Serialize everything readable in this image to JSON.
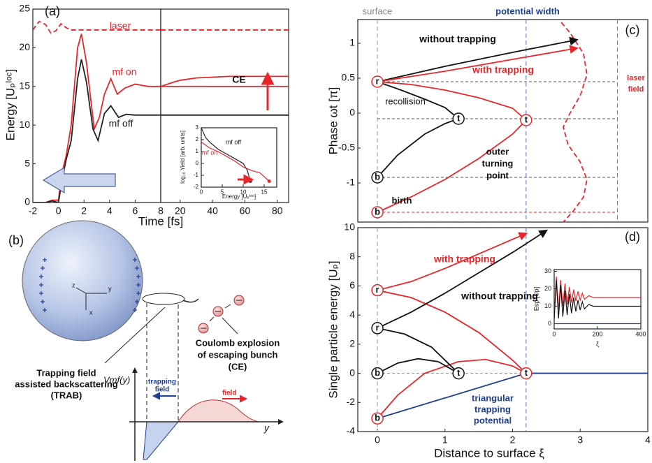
{
  "chart_data": [
    {
      "type": "line",
      "xlim": [
        -2,
        8
      ],
      "xticks": [
        -2,
        0,
        2,
        4,
        6,
        8
      ],
      "ylim": [
        0,
        25
      ],
      "yticks": [
        0,
        5,
        10,
        15,
        20,
        25
      ],
      "xlabel": "Time [fs]",
      "ylabel": "Energy [Uₚˡᵒᶜ]",
      "annotations": [
        "(a)",
        "TRAB"
      ],
      "series": [
        {
          "name": "laser",
          "color": "#e8262a",
          "dash": true,
          "x": [
            -2,
            -1.5,
            -1,
            -0.6,
            -0.2,
            0.2,
            0.6,
            1,
            8
          ],
          "values": [
            22.3,
            23.4,
            23.0,
            21.9,
            22.2,
            23.1,
            22.6,
            22.3,
            22.3
          ]
        },
        {
          "name": "mf on",
          "color": "#e8262a",
          "x": [
            -2,
            -1,
            -0.5,
            0,
            0.3,
            0.6,
            1,
            1.5,
            1.8,
            2.2,
            2.8,
            3.2,
            3.6,
            4.1,
            4.6,
            5.2,
            6,
            7,
            8
          ],
          "values": [
            0,
            0,
            0.3,
            0.3,
            4,
            6,
            10,
            20,
            21.8,
            18,
            9.5,
            11,
            14,
            16,
            14,
            14.8,
            15.3,
            15,
            15
          ]
        },
        {
          "name": "mf off",
          "color": "#222222",
          "x": [
            -2,
            -1,
            -0.5,
            0,
            0.3,
            0.6,
            1,
            1.5,
            1.8,
            2.2,
            2.7,
            3.1,
            3.6,
            4.1,
            4.7,
            5.3,
            6,
            8
          ],
          "values": [
            0,
            0,
            0.2,
            0,
            3,
            5.5,
            8,
            16,
            18.5,
            15.5,
            9.5,
            8,
            11.5,
            12.5,
            11,
            11.4,
            11.3,
            11.3
          ]
        }
      ]
    },
    {
      "type": "line",
      "xlim": [
        8,
        87
      ],
      "xticks": [
        20,
        40,
        60,
        80
      ],
      "ylim": [
        0,
        25
      ],
      "annotations": [
        "CE"
      ],
      "series": [
        {
          "color": "#e8262a",
          "dash": true,
          "x": [
            8,
            87
          ],
          "values": [
            22.3,
            22.3
          ]
        },
        {
          "color": "#e8262a",
          "x": [
            8,
            15,
            20,
            30,
            40,
            50,
            60,
            70,
            87
          ],
          "values": [
            15,
            15.5,
            15.8,
            16.1,
            16.2,
            16.3,
            16.3,
            16.3,
            16.3
          ]
        },
        {
          "color": "#c04040",
          "x": [
            8,
            87
          ],
          "values": [
            15,
            15
          ]
        },
        {
          "color": "#222222",
          "x": [
            8,
            87
          ],
          "values": [
            11.3,
            11.3
          ]
        }
      ]
    },
    {
      "type": "line",
      "xlim": [
        0,
        18
      ],
      "xticks": [
        0,
        5,
        10,
        15
      ],
      "ylim": [
        -2,
        3
      ],
      "yticks": [
        -2,
        -1,
        0,
        1,
        2,
        3
      ],
      "xlabel": "Energy [Uₚˡᵒᶜ]",
      "ylabel": "log₁₀ Yield [arb. units]",
      "series": [
        {
          "name": "mf off",
          "color": "#222222",
          "x": [
            0,
            1,
            2,
            4,
            6,
            8,
            10,
            11,
            11.7
          ],
          "values": [
            3,
            2.2,
            1.8,
            1.2,
            0.8,
            0.4,
            0,
            -0.6,
            -1.5
          ]
        },
        {
          "name": "mf on",
          "color": "#e8262a",
          "x": [
            0,
            2,
            4,
            6,
            8,
            10,
            12,
            14,
            16.2
          ],
          "values": [
            1.8,
            1.3,
            1,
            0.6,
            0.2,
            -0.3,
            -0.6,
            -0.8,
            -1.5
          ]
        }
      ],
      "points": [
        {
          "x": 11.7,
          "y": -1.5,
          "color": "#333333"
        },
        {
          "x": 16.2,
          "y": -1.5,
          "color": "#e8262a"
        }
      ]
    },
    {
      "type": "line",
      "xlim": [
        -0.29,
        4
      ],
      "ylim": [
        -1.56,
        1.34
      ],
      "yticks": [
        -1,
        -0.5,
        0,
        0.5,
        1
      ],
      "ylabel": "Phase ωt [π]",
      "annotations": [
        "(c)",
        "surface",
        "potential width",
        "recollision",
        [
          "outer",
          "turning",
          "point"
        ],
        "birth",
        [
          "laser",
          "field"
        ]
      ],
      "vlines": [
        {
          "x": 0,
          "color": "#999999"
        },
        {
          "x": 2.2,
          "color": "#4a6fb5"
        },
        {
          "x": 3.55,
          "color": "#777777"
        }
      ],
      "hlines": [
        {
          "y": 0.45,
          "color": "#555555"
        },
        {
          "y": -0.08,
          "color": "#555555"
        },
        {
          "y": -0.92,
          "color": "#555555"
        },
        {
          "y": -1.42,
          "color": "#e8262a"
        }
      ],
      "series": [
        {
          "name": "without trapping",
          "color": "#111111",
          "arrow": true,
          "x": [
            0,
            1,
            2,
            2.95
          ],
          "values": [
            0.45,
            0.67,
            0.87,
            1.05
          ]
        },
        {
          "name": "with trapping",
          "color": "#e8262a",
          "arrow": true,
          "x": [
            0,
            1,
            2,
            2.95
          ],
          "values": [
            0.45,
            0.6,
            0.77,
            0.93
          ]
        },
        {
          "color": "#e8262a",
          "x": [
            0,
            0.5,
            1,
            1.5,
            2,
            2.2,
            2,
            1.5,
            1,
            0.5,
            0
          ],
          "values": [
            -1.42,
            -1.2,
            -0.95,
            -0.65,
            -0.3,
            -0.1,
            0.07,
            0.22,
            0.33,
            0.41,
            0.45
          ]
        },
        {
          "color": "#111111",
          "x": [
            0,
            0.3,
            0.7,
            1,
            1.2,
            1,
            0.7,
            0.35,
            0
          ],
          "values": [
            -0.92,
            -0.6,
            -0.3,
            -0.15,
            -0.08,
            0.08,
            0.2,
            0.33,
            0.45
          ]
        },
        {
          "color": "#e8262a",
          "dash": true,
          "x": [
            2.72,
            2.85,
            3.05,
            3.1,
            3.0,
            2.85,
            2.75,
            2.82,
            3.0,
            3.1,
            3.05,
            2.9,
            2.75
          ],
          "values": [
            1.3,
            1.15,
            0.85,
            0.55,
            0.25,
            0,
            -0.2,
            -0.45,
            -0.7,
            -0.95,
            -1.2,
            -1.4,
            -1.56
          ]
        }
      ],
      "points": [
        {
          "label": "r",
          "x": 0,
          "y": 0.45,
          "color": "#e8262a"
        },
        {
          "label": "t",
          "x": 1.2,
          "y": -0.08,
          "color": "#111111"
        },
        {
          "label": "t",
          "x": 2.2,
          "y": -0.1,
          "color": "#e8262a"
        },
        {
          "label": "b",
          "x": 0,
          "y": -0.92,
          "color": "#111111"
        },
        {
          "label": "b",
          "x": 0,
          "y": -1.42,
          "color": "#e8262a"
        }
      ]
    },
    {
      "type": "line",
      "xlim": [
        -0.29,
        4
      ],
      "xticks": [
        0,
        1,
        2,
        3,
        4
      ],
      "ylim": [
        -4,
        10
      ],
      "yticks": [
        -4,
        -2,
        0,
        2,
        4,
        6,
        8,
        10
      ],
      "xlabel": "Distance to surface ξ",
      "ylabel": "Single particle energy [Uₚ]",
      "annotations": [
        "(d)",
        [
          "triangular",
          "trapping",
          "potential"
        ]
      ],
      "vlines": [
        {
          "x": 0,
          "color": "#999999"
        },
        {
          "x": 2.2,
          "color": "#4a6fb5"
        }
      ],
      "hlines": [
        {
          "y": 0,
          "color": "#888888"
        }
      ],
      "series": [
        {
          "name": "with trapping",
          "color": "#e8262a",
          "arrow": true,
          "x": [
            0,
            0.5,
            1,
            1.5,
            2.2
          ],
          "values": [
            5.7,
            6.3,
            7.2,
            8.2,
            9.6
          ]
        },
        {
          "name": "without trapping",
          "color": "#111111",
          "arrow": true,
          "x": [
            0,
            0.5,
            1,
            1.5,
            2,
            2.5
          ],
          "values": [
            3.1,
            4.2,
            5.5,
            6.9,
            8.3,
            9.8
          ]
        },
        {
          "color": "#e8262a",
          "x": [
            0,
            0.5,
            1,
            1.5,
            2,
            2.2
          ],
          "values": [
            5.7,
            5.2,
            4.2,
            2.8,
            0.9,
            0
          ]
        },
        {
          "color": "#e8262a",
          "x": [
            0,
            0.3,
            0.7,
            1.2,
            1.6,
            2,
            2.2
          ],
          "values": [
            -3.1,
            -1.5,
            0,
            0.8,
            0.95,
            0.5,
            0
          ]
        },
        {
          "color": "#111111",
          "x": [
            0,
            0.4,
            0.8,
            1.2
          ],
          "values": [
            3.1,
            2.7,
            1.8,
            0
          ]
        },
        {
          "color": "#111111",
          "x": [
            0,
            0.3,
            0.6,
            0.9,
            1.2
          ],
          "values": [
            0,
            0.7,
            1.0,
            0.8,
            0
          ]
        },
        {
          "color": "#1f3f8f",
          "x": [
            0,
            2.2,
            4
          ],
          "values": [
            -3.1,
            0,
            0
          ]
        }
      ],
      "points": [
        {
          "label": "r",
          "x": 0,
          "y": 5.7,
          "color": "#e8262a"
        },
        {
          "label": "r",
          "x": 0,
          "y": 3.1,
          "color": "#111111"
        },
        {
          "label": "b",
          "x": 0,
          "y": 0,
          "color": "#111111"
        },
        {
          "label": "b",
          "x": 0,
          "y": -3.1,
          "color": "#e8262a"
        },
        {
          "label": "t",
          "x": 1.2,
          "y": 0,
          "color": "#111111"
        },
        {
          "label": "t",
          "x": 2.2,
          "y": 0,
          "color": "#e8262a"
        }
      ]
    },
    {
      "type": "line",
      "xlim": [
        0,
        400
      ],
      "xticks": [
        0,
        200,
        400
      ],
      "ylim": [
        -3,
        31
      ],
      "yticks": [
        0,
        10,
        20,
        30
      ],
      "xlabel": "ξ",
      "ylabel": "Esp [Up]",
      "series": [
        {
          "color": "#e8262a",
          "x": [
            0,
            10,
            20,
            30,
            40,
            50,
            60,
            70,
            80,
            90,
            100,
            110,
            120,
            130,
            140,
            160,
            180,
            200,
            240,
            300,
            400
          ],
          "values": [
            5,
            27,
            8,
            25,
            10,
            23,
            11,
            21,
            12,
            19.5,
            13,
            18.5,
            13.5,
            17.5,
            14,
            16,
            15,
            15,
            15,
            15,
            15
          ]
        },
        {
          "color": "#111111",
          "x": [
            0,
            10,
            20,
            30,
            40,
            50,
            60,
            70,
            80,
            90,
            100,
            110,
            120,
            130,
            140,
            160,
            180,
            200,
            240,
            300,
            400
          ],
          "values": [
            2,
            25,
            3,
            22,
            4,
            19,
            5,
            17,
            6,
            15,
            7,
            13.5,
            7.8,
            12.5,
            8.5,
            11,
            10,
            10,
            10,
            10,
            10
          ]
        },
        {
          "color": "#1f3f8f",
          "x": [
            0,
            400
          ],
          "values": [
            0,
            0
          ]
        }
      ]
    }
  ],
  "panel_b": {
    "label": "(b)",
    "axes": [
      "z",
      "y",
      "x"
    ],
    "ce": [
      "Coulomb explosion",
      "of escaping bunch",
      "(CE)"
    ],
    "trab": [
      "Trapping field",
      "assisted backscattering",
      "(TRAB)"
    ],
    "potential": "Vmf(y)",
    "trapping_field": [
      "trapping",
      "field"
    ],
    "field": "field",
    "y_axis": "y"
  }
}
